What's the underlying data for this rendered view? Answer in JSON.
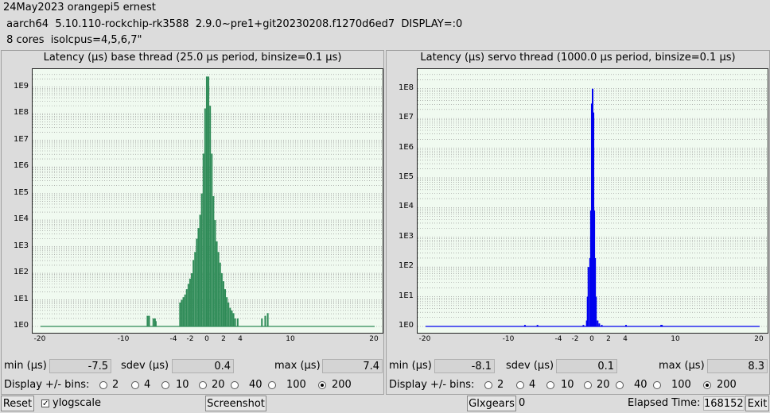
{
  "header": {
    "line1": "24May2023 orangepi5 ernest",
    "line2": " aarch64  5.10.110-rockchip-rk3588  2.9.0~pre1+git20230208.f1270d6ed7  DISPLAY=:0",
    "line3": " 8 cores  isolcpus=4,5,6,7\""
  },
  "base": {
    "title": "Latency (µs) base thread (25.0 µs period, binsize=0.1 µs)",
    "min_label": "min (µs)",
    "min": "-7.5",
    "sdev_label": "sdev (µs)",
    "sdev": "0.4",
    "max_label": "max (µs)",
    "max": "7.4",
    "bins_label": "Display +/- bins:",
    "color": "#2e8b57"
  },
  "servo": {
    "title": "Latency (µs) servo thread (1000.0 µs period, binsize=0.1 µs)",
    "min_label": "min (µs)",
    "min": "-8.1",
    "sdev_label": "sdev (µs)",
    "sdev": "0.1",
    "max_label": "max (µs)",
    "max": "8.3",
    "bins_label": "Display +/- bins:",
    "color": "#0000ee"
  },
  "bins_options": [
    "2",
    "4",
    "10",
    "20",
    "40",
    "100",
    "200"
  ],
  "bins_selected": "200",
  "y_ticks": [
    "1E0",
    "1E1",
    "1E2",
    "1E3",
    "1E4",
    "1E5",
    "1E6",
    "1E7",
    "1E8",
    "1E9"
  ],
  "x_ticks": [
    "-20",
    "-10",
    "-4",
    "-2",
    "0",
    "2",
    "4",
    "10",
    "20"
  ],
  "footer": {
    "reset": "Reset",
    "ylogscale": "ylogscale",
    "ylogscale_checked": true,
    "screenshot": "Screenshot",
    "glxgears": "Glxgears",
    "glxgears_count": "0",
    "elapsed_label": "Elapsed Time:",
    "elapsed": "168152",
    "exit": "Exit"
  },
  "chart_data": [
    {
      "type": "bar",
      "title": "Latency (µs) base thread (25.0 µs period, binsize=0.1 µs)",
      "xlim": [
        -20,
        20
      ],
      "y_scale": "log",
      "ylim_exp": [
        0,
        9.5
      ],
      "x": [
        -7.2,
        -7.0,
        -6.5,
        -6.3,
        -6.2,
        -3.3,
        -3.1,
        -2.9,
        -2.7,
        -2.5,
        -2.3,
        -2.1,
        -1.9,
        -1.7,
        -1.5,
        -1.3,
        -1.1,
        -0.9,
        -0.7,
        -0.5,
        -0.3,
        -0.1,
        0.1,
        0.3,
        0.5,
        0.7,
        0.9,
        1.1,
        1.3,
        1.5,
        1.7,
        1.9,
        2.1,
        2.3,
        2.5,
        2.7,
        2.9,
        3.1,
        3.3,
        3.6,
        6.5,
        6.9,
        7.2
      ],
      "log_values": [
        0.4,
        0.4,
        0.3,
        0.3,
        0.2,
        0.9,
        1.0,
        1.1,
        1.2,
        1.4,
        1.6,
        1.8,
        2.0,
        2.5,
        2.8,
        3.3,
        3.7,
        4.2,
        5.0,
        6.5,
        8.2,
        9.4,
        9.4,
        8.3,
        6.5,
        4.9,
        4.0,
        3.2,
        2.8,
        2.4,
        2.0,
        1.7,
        1.4,
        1.1,
        0.9,
        0.7,
        0.6,
        0.5,
        0.3,
        0.3,
        0.3,
        0.4,
        0.5
      ]
    },
    {
      "type": "bar",
      "title": "Latency (µs) servo thread (1000.0 µs period, binsize=0.1 µs)",
      "xlim": [
        -20,
        20
      ],
      "y_scale": "log",
      "ylim_exp": [
        0,
        8.5
      ],
      "x": [
        -8.1,
        -6.6,
        -1.1,
        -0.7,
        -0.6,
        -0.5,
        -0.3,
        -0.2,
        -0.1,
        0.0,
        0.1,
        0.2,
        0.3,
        0.4,
        0.6,
        0.8,
        1.1,
        4.0,
        8.2,
        8.3
      ],
      "log_values": [
        0.05,
        0.05,
        0.05,
        0.2,
        1.0,
        2.0,
        2.3,
        3.9,
        7.5,
        8.0,
        7.2,
        3.9,
        2.3,
        1.0,
        0.2,
        0.1,
        0.05,
        0.05,
        0.05,
        0.05
      ]
    }
  ]
}
